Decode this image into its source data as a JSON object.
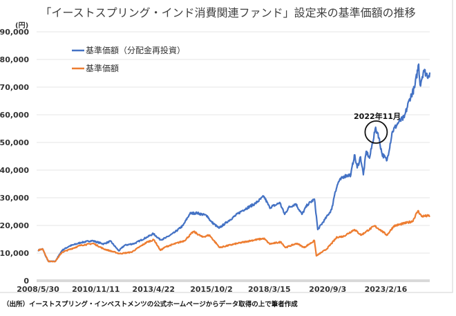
{
  "chart_data": {
    "type": "line",
    "title": "「イーストスプリング・インド消費関連ファンド」設定来の基準価額の推移",
    "ylabel": "(円)",
    "xlabel": "",
    "ylim": [
      0,
      90000
    ],
    "xlim": [
      2008.41,
      2024.99
    ],
    "grid": true,
    "legend_position": "top-left",
    "y_ticks": [
      {
        "value": 0,
        "label": "0"
      },
      {
        "value": 10000,
        "label": "10,000"
      },
      {
        "value": 20000,
        "label": "20,000"
      },
      {
        "value": 30000,
        "label": "30,000"
      },
      {
        "value": 40000,
        "label": "40,000"
      },
      {
        "value": 50000,
        "label": "50,000"
      },
      {
        "value": 60000,
        "label": "60,000"
      },
      {
        "value": 70000,
        "label": "70,000"
      },
      {
        "value": 80000,
        "label": "80,000"
      },
      {
        "value": 90000,
        "label": "90,000"
      }
    ],
    "x_ticks": [
      {
        "year": 2008.41,
        "label": "2008/5/30"
      },
      {
        "year": 2010.86,
        "label": "2010/11/11"
      },
      {
        "year": 2013.3,
        "label": "2013/4/22"
      },
      {
        "year": 2015.75,
        "label": "2015/10/2"
      },
      {
        "year": 2018.2,
        "label": "2018/3/15"
      },
      {
        "year": 2020.67,
        "label": "2020/9/3"
      },
      {
        "year": 2023.13,
        "label": "2023/2/16"
      }
    ],
    "series": [
      {
        "name": "基準価額（分配金再投資）",
        "color": "#4472C4",
        "points": [
          [
            2008.41,
            11000
          ],
          [
            2008.61,
            11500
          ],
          [
            2008.73,
            9000
          ],
          [
            2008.85,
            7000
          ],
          [
            2009.14,
            7000
          ],
          [
            2009.43,
            11000
          ],
          [
            2009.73,
            12500
          ],
          [
            2010.22,
            13800
          ],
          [
            2010.69,
            14500
          ],
          [
            2011.19,
            13300
          ],
          [
            2011.48,
            14300
          ],
          [
            2011.83,
            10800
          ],
          [
            2012.07,
            12800
          ],
          [
            2012.5,
            13500
          ],
          [
            2013.03,
            15800
          ],
          [
            2013.29,
            17000
          ],
          [
            2013.59,
            14800
          ],
          [
            2013.82,
            15500
          ],
          [
            2014.2,
            17500
          ],
          [
            2014.55,
            20000
          ],
          [
            2014.84,
            24300
          ],
          [
            2015.13,
            24500
          ],
          [
            2015.57,
            23500
          ],
          [
            2015.72,
            21500
          ],
          [
            2016.07,
            19000
          ],
          [
            2016.45,
            21500
          ],
          [
            2017.04,
            25300
          ],
          [
            2017.62,
            28000
          ],
          [
            2017.97,
            30500
          ],
          [
            2018.21,
            26500
          ],
          [
            2018.5,
            27500
          ],
          [
            2018.64,
            28300
          ],
          [
            2018.85,
            24000
          ],
          [
            2019.02,
            26500
          ],
          [
            2019.32,
            27800
          ],
          [
            2019.58,
            24000
          ],
          [
            2019.81,
            27500
          ],
          [
            2020.11,
            29500
          ],
          [
            2020.25,
            18500
          ],
          [
            2020.54,
            22000
          ],
          [
            2020.84,
            25800
          ],
          [
            2020.98,
            32000
          ],
          [
            2021.13,
            35800
          ],
          [
            2021.36,
            37800
          ],
          [
            2021.65,
            38300
          ],
          [
            2021.8,
            45500
          ],
          [
            2021.92,
            40800
          ],
          [
            2022.06,
            44800
          ],
          [
            2022.18,
            38300
          ],
          [
            2022.3,
            46800
          ],
          [
            2022.44,
            44300
          ],
          [
            2022.68,
            54800
          ],
          [
            2022.8,
            53300
          ],
          [
            2022.97,
            45800
          ],
          [
            2023.18,
            43500
          ],
          [
            2023.41,
            54000
          ],
          [
            2023.67,
            57300
          ],
          [
            2023.91,
            59000
          ],
          [
            2024.14,
            65800
          ],
          [
            2024.35,
            69800
          ],
          [
            2024.52,
            78300
          ],
          [
            2024.58,
            70800
          ],
          [
            2024.73,
            76000
          ],
          [
            2024.93,
            74000
          ],
          [
            2024.99,
            75300
          ]
        ]
      },
      {
        "name": "基準価額",
        "color": "#ED7D31",
        "points": [
          [
            2008.41,
            11000
          ],
          [
            2008.61,
            11500
          ],
          [
            2008.85,
            7000
          ],
          [
            2009.14,
            7000
          ],
          [
            2009.43,
            10300
          ],
          [
            2010.22,
            12800
          ],
          [
            2010.75,
            13500
          ],
          [
            2011.19,
            11500
          ],
          [
            2011.86,
            9800
          ],
          [
            2012.36,
            10300
          ],
          [
            2013.03,
            14000
          ],
          [
            2013.32,
            14800
          ],
          [
            2013.59,
            11000
          ],
          [
            2013.82,
            12300
          ],
          [
            2014.61,
            14500
          ],
          [
            2014.99,
            17800
          ],
          [
            2015.37,
            15800
          ],
          [
            2015.66,
            16500
          ],
          [
            2016.1,
            12000
          ],
          [
            2016.74,
            13300
          ],
          [
            2017.42,
            14500
          ],
          [
            2017.97,
            15300
          ],
          [
            2018.21,
            13300
          ],
          [
            2018.7,
            14000
          ],
          [
            2018.88,
            12000
          ],
          [
            2019.37,
            13500
          ],
          [
            2019.67,
            12000
          ],
          [
            2020.11,
            14500
          ],
          [
            2020.19,
            9000
          ],
          [
            2020.63,
            11500
          ],
          [
            2021.07,
            15800
          ],
          [
            2021.33,
            16000
          ],
          [
            2021.8,
            18500
          ],
          [
            2022.09,
            16500
          ],
          [
            2022.3,
            17800
          ],
          [
            2022.65,
            19800
          ],
          [
            2022.88,
            18500
          ],
          [
            2023.18,
            16500
          ],
          [
            2023.47,
            19800
          ],
          [
            2024.26,
            21500
          ],
          [
            2024.49,
            25300
          ],
          [
            2024.64,
            23300
          ],
          [
            2024.99,
            23500
          ]
        ]
      }
    ],
    "annotation": {
      "label": "2022年11月",
      "year": 2022.72,
      "value": 53000
    },
    "source": "（出所）イーストスプリング・インベストメンツの公式ホームページからデータ取得の上で筆者作成"
  }
}
